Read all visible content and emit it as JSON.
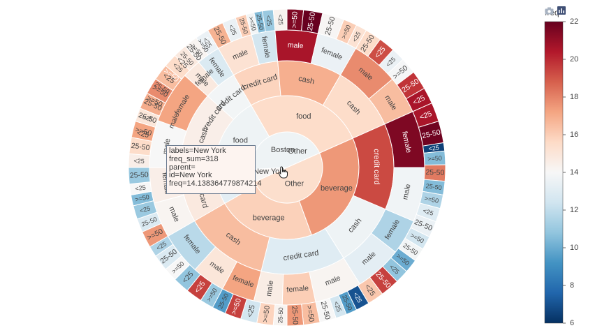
{
  "chart_data": {
    "type": "sunburst",
    "root": {
      "label": "Other"
    },
    "colorbar": {
      "title": "freq",
      "ticks": [
        "22",
        "20",
        "18",
        "16",
        "14",
        "12",
        "10",
        "8",
        "6"
      ],
      "range": [
        6,
        22
      ],
      "colorscale": [
        "#053061",
        "#2166ac",
        "#4393c3",
        "#92c5de",
        "#d1e5f0",
        "#f7f7f7",
        "#fddbc7",
        "#f4a582",
        "#d6604d",
        "#b2182b",
        "#67001f"
      ]
    },
    "hover": {
      "lines": [
        "labels=New York",
        "freq_sum=318",
        "parent=",
        "id=New York",
        "freq=14.138364779874214"
      ]
    },
    "nodes": [
      {
        "id": "c_ny",
        "depth": 0,
        "label": "New York",
        "start": 246,
        "end": 267,
        "freq": 14.1
      },
      {
        "id": "c_bos",
        "depth": 0,
        "label": "Boston",
        "start": 267,
        "end": 426,
        "freq": 13.6
      },
      {
        "id": "c_oth",
        "depth": 0,
        "label": "Other",
        "start": 66,
        "end": 246,
        "freq": 15.4
      },
      {
        "id": "t_food1",
        "depth": 1,
        "label": "food",
        "start": -30,
        "end": 66,
        "freq": 15.5
      },
      {
        "id": "t_bev1",
        "depth": 1,
        "label": "beverage",
        "start": 66,
        "end": 160,
        "freq": 17.5
      },
      {
        "id": "t_bev2",
        "depth": 1,
        "label": "beverage",
        "start": 160,
        "end": 240,
        "freq": 15.9
      },
      {
        "id": "t_beverage_left",
        "depth": 1,
        "label": "beverage",
        "start": 240,
        "end": 270,
        "freq": 13.2
      },
      {
        "id": "t_food2",
        "depth": 1,
        "label": "food",
        "start": 270,
        "end": 330,
        "freq": 13.6
      },
      {
        "id": "p1",
        "depth": 2,
        "label": "credit card",
        "start": -80,
        "end": -30,
        "freq": 17.0
      },
      {
        "id": "p2",
        "depth": 2,
        "label": "credit card",
        "start": -30,
        "end": -5,
        "freq": 15.8
      },
      {
        "id": "p3",
        "depth": 2,
        "label": "cash",
        "start": -5,
        "end": 30,
        "freq": 16.9
      },
      {
        "id": "p4",
        "depth": 2,
        "label": "cash",
        "start": 30,
        "end": 66,
        "freq": 15.5
      },
      {
        "id": "p5",
        "depth": 2,
        "label": "credit card",
        "start": 66,
        "end": 113,
        "freq": 19.3
      },
      {
        "id": "p6",
        "depth": 2,
        "label": "cash",
        "start": 113,
        "end": 148,
        "freq": 13.6
      },
      {
        "id": "p7",
        "depth": 2,
        "label": "credit card",
        "start": 148,
        "end": 194,
        "freq": 13.0
      },
      {
        "id": "p8",
        "depth": 2,
        "label": "cash",
        "start": 194,
        "end": 240,
        "freq": 16.5
      },
      {
        "id": "p9",
        "depth": 2,
        "label": "credit card",
        "start": 240,
        "end": 270,
        "freq": 14.8
      },
      {
        "id": "p10",
        "depth": 2,
        "label": "cash",
        "start": 270,
        "end": 312,
        "freq": 14.5
      },
      {
        "id": "p11",
        "depth": 2,
        "label": "credit card",
        "start": 312,
        "end": 330,
        "freq": 13.8
      },
      {
        "id": "g1",
        "depth": 3,
        "label": "male",
        "start": -80,
        "end": -55,
        "freq": 17.5
      },
      {
        "id": "g2",
        "depth": 3,
        "label": "female",
        "start": -55,
        "end": -30,
        "freq": 17.0
      },
      {
        "id": "g3",
        "depth": 3,
        "label": "male",
        "start": -30,
        "end": -15,
        "freq": 15.2
      },
      {
        "id": "g4",
        "depth": 3,
        "label": "female",
        "start": -15,
        "end": -5,
        "freq": 12.5
      },
      {
        "id": "g5",
        "depth": 3,
        "label": "male",
        "start": -5,
        "end": 13,
        "freq": 20.6
      },
      {
        "id": "g6",
        "depth": 3,
        "label": "female",
        "start": 13,
        "end": 30,
        "freq": 13.5
      },
      {
        "id": "g7",
        "depth": 3,
        "label": "male",
        "start": 30,
        "end": 50,
        "freq": 17.8
      },
      {
        "id": "g8",
        "depth": 3,
        "label": "male",
        "start": 50,
        "end": 66,
        "freq": 16.5
      },
      {
        "id": "g9",
        "depth": 3,
        "label": "female",
        "start": 66,
        "end": 90,
        "freq": 21.5
      },
      {
        "id": "g10",
        "depth": 3,
        "label": "male",
        "start": 90,
        "end": 113,
        "freq": 13.7
      },
      {
        "id": "g11",
        "depth": 3,
        "label": "female",
        "start": 113,
        "end": 128,
        "freq": 11.5
      },
      {
        "id": "g12",
        "depth": 3,
        "label": "male",
        "start": 128,
        "end": 148,
        "freq": 13.2
      },
      {
        "id": "g13",
        "depth": 3,
        "label": "male",
        "start": 148,
        "end": 168,
        "freq": 14.2
      },
      {
        "id": "g14",
        "depth": 3,
        "label": "female",
        "start": 168,
        "end": 182,
        "freq": 16.0
      },
      {
        "id": "g15",
        "depth": 3,
        "label": "male",
        "start": 182,
        "end": 194,
        "freq": 14.6
      },
      {
        "id": "g16",
        "depth": 3,
        "label": "female",
        "start": 194,
        "end": 208,
        "freq": 17.2
      },
      {
        "id": "g17",
        "depth": 3,
        "label": "male",
        "start": 208,
        "end": 222,
        "freq": 15.0
      },
      {
        "id": "g18",
        "depth": 3,
        "label": "female",
        "start": 222,
        "end": 240,
        "freq": 11.8
      },
      {
        "id": "g19",
        "depth": 3,
        "label": "male",
        "start": 240,
        "end": 255,
        "freq": 14.2
      },
      {
        "id": "g20",
        "depth": 3,
        "label": "female",
        "start": 255,
        "end": 270,
        "freq": 14.5
      },
      {
        "id": "g21",
        "depth": 3,
        "label": "male",
        "start": 270,
        "end": 290,
        "freq": 14.0
      },
      {
        "id": "g22",
        "depth": 3,
        "label": "female",
        "start": 290,
        "end": 312,
        "freq": 17.2
      },
      {
        "id": "g23",
        "depth": 3,
        "label": "male",
        "start": 312,
        "end": 320,
        "freq": 14.8
      },
      {
        "id": "g24",
        "depth": 3,
        "label": "female",
        "start": 320,
        "end": 330,
        "freq": 12.8
      },
      {
        "id": "a1",
        "depth": 4,
        "label": "<25",
        "start": -80,
        "end": -74,
        "freq": 15.0
      },
      {
        "id": "a2",
        "depth": 4,
        "label": "25-50",
        "start": -74,
        "end": -67,
        "freq": 16.2
      },
      {
        "id": "a3",
        "depth": 4,
        "label": ">=50",
        "start": -67,
        "end": -60,
        "freq": 18.0
      },
      {
        "id": "a4",
        "depth": 4,
        "label": "25-50",
        "start": -60,
        "end": -55,
        "freq": 15.8
      },
      {
        "id": "a5",
        "depth": 4,
        "label": ">=50",
        "start": -55,
        "end": -48,
        "freq": 19.5
      },
      {
        "id": "a6",
        "depth": 4,
        "label": "<25",
        "start": -48,
        "end": -42,
        "freq": 18.6
      },
      {
        "id": "a7",
        "depth": 4,
        "label": "25-50",
        "start": -42,
        "end": -36,
        "freq": 16.3
      },
      {
        "id": "a8",
        "depth": 4,
        "label": ">=50",
        "start": -36,
        "end": -33,
        "freq": 14.0
      },
      {
        "id": "a9",
        "depth": 4,
        "label": "<25",
        "start": -33,
        "end": -30,
        "freq": 7.0
      },
      {
        "id": "a10",
        "depth": 4,
        "label": "25-50",
        "start": -30,
        "end": -24,
        "freq": 16.8
      },
      {
        "id": "a11",
        "depth": 4,
        "label": "<25",
        "start": -24,
        "end": -19,
        "freq": 13.5
      },
      {
        "id": "a12",
        "depth": 4,
        "label": "25-50",
        "start": -19,
        "end": -15,
        "freq": 16.0
      },
      {
        "id": "a13",
        "depth": 4,
        "label": ">=50",
        "start": -15,
        "end": -12,
        "freq": 13.8
      },
      {
        "id": "a14",
        "depth": 4,
        "label": "25-50",
        "start": -12,
        "end": -9,
        "freq": 10.5
      },
      {
        "id": "a15",
        "depth": 4,
        "label": "<25",
        "start": -9,
        "end": -5,
        "freq": 11.0
      },
      {
        "id": "a16",
        "depth": 4,
        "label": "<25",
        "start": -5,
        "end": 0,
        "freq": 14.3
      },
      {
        "id": "a17",
        "depth": 4,
        "label": ">=50",
        "start": 0,
        "end": 6,
        "freq": 21.5
      },
      {
        "id": "a18",
        "depth": 4,
        "label": "25-50",
        "start": 6,
        "end": 13,
        "freq": 22.0
      },
      {
        "id": "a19",
        "depth": 4,
        "label": "25-50",
        "start": 13,
        "end": 21,
        "freq": 14.1
      },
      {
        "id": "a20",
        "depth": 4,
        "label": ">=50",
        "start": 21,
        "end": 26,
        "freq": 16.0
      },
      {
        "id": "a21",
        "depth": 4,
        "label": "<25",
        "start": 26,
        "end": 30,
        "freq": 15.2
      },
      {
        "id": "a22",
        "depth": 4,
        "label": "25-50",
        "start": 30,
        "end": 36,
        "freq": 15.5
      },
      {
        "id": "a23",
        "depth": 4,
        "label": "<25",
        "start": 36,
        "end": 42,
        "freq": 19.2
      },
      {
        "id": "a24",
        "depth": 4,
        "label": "<25",
        "start": 42,
        "end": 47,
        "freq": 13.5
      },
      {
        "id": "a25",
        "depth": 4,
        "label": ">=50",
        "start": 47,
        "end": 53,
        "freq": 13.9
      },
      {
        "id": "a26",
        "depth": 4,
        "label": "25-50",
        "start": 53,
        "end": 60,
        "freq": 19.8
      },
      {
        "id": "a27",
        "depth": 4,
        "label": "<25",
        "start": 60,
        "end": 66,
        "freq": 20.6
      },
      {
        "id": "a28",
        "depth": 4,
        "label": "<25",
        "start": 66,
        "end": 73,
        "freq": 20.6
      },
      {
        "id": "a29",
        "depth": 4,
        "label": "25-50",
        "start": 73,
        "end": 81,
        "freq": 21.8
      },
      {
        "id": "a30",
        "depth": 4,
        "label": "<25",
        "start": 81,
        "end": 84,
        "freq": 6.5
      },
      {
        "id": "a31",
        "depth": 4,
        "label": ">=50",
        "start": 84,
        "end": 89,
        "freq": 10.5
      },
      {
        "id": "a32",
        "depth": 4,
        "label": "25-50",
        "start": 89,
        "end": 95,
        "freq": 18.2
      },
      {
        "id": "a33",
        "depth": 4,
        "label": "25-50",
        "start": 95,
        "end": 100,
        "freq": 10.5
      },
      {
        "id": "a34",
        "depth": 4,
        "label": ">=50",
        "start": 100,
        "end": 105,
        "freq": 11.5
      },
      {
        "id": "a35",
        "depth": 4,
        "label": "<25",
        "start": 105,
        "end": 110,
        "freq": 13.0
      },
      {
        "id": "a36",
        "depth": 4,
        "label": "25-50",
        "start": 110,
        "end": 116,
        "freq": 13.5
      },
      {
        "id": "a37",
        "depth": 4,
        "label": ">=50",
        "start": 116,
        "end": 121,
        "freq": 12.5
      },
      {
        "id": "a38",
        "depth": 4,
        "label": "25-50",
        "start": 121,
        "end": 126,
        "freq": 13.8
      },
      {
        "id": "a39",
        "depth": 4,
        "label": ">=50",
        "start": 126,
        "end": 131,
        "freq": 10.0
      },
      {
        "id": "a40",
        "depth": 4,
        "label": "<25",
        "start": 131,
        "end": 136,
        "freq": 10.8
      },
      {
        "id": "a41",
        "depth": 4,
        "label": "25-50",
        "start": 136,
        "end": 143,
        "freq": 19.5
      },
      {
        "id": "a42",
        "depth": 4,
        "label": "<25",
        "start": 143,
        "end": 149,
        "freq": 16.2
      },
      {
        "id": "a43",
        "depth": 4,
        "label": "<25",
        "start": 149,
        "end": 154,
        "freq": 7.0
      },
      {
        "id": "a44",
        "depth": 4,
        "label": "25-50",
        "start": 154,
        "end": 158,
        "freq": 9.5
      },
      {
        "id": "a45",
        "depth": 4,
        "label": "<25",
        "start": 158,
        "end": 162,
        "freq": 12.5
      },
      {
        "id": "a46",
        "depth": 4,
        "label": "25-50",
        "start": 162,
        "end": 168,
        "freq": 14.0
      },
      {
        "id": "a47",
        "depth": 4,
        "label": ">=50",
        "start": 168,
        "end": 174,
        "freq": 16.5
      },
      {
        "id": "a48",
        "depth": 4,
        "label": "25-50",
        "start": 174,
        "end": 180,
        "freq": 17.5
      },
      {
        "id": "a49",
        "depth": 4,
        "label": "25-50",
        "start": 180,
        "end": 185,
        "freq": 14.2
      },
      {
        "id": "a50",
        "depth": 4,
        "label": ">=50",
        "start": 185,
        "end": 191,
        "freq": 15.8
      },
      {
        "id": "a51",
        "depth": 4,
        "label": "<25",
        "start": 191,
        "end": 197,
        "freq": 12.5
      },
      {
        "id": "a52",
        "depth": 4,
        "label": ">=50",
        "start": 197,
        "end": 203,
        "freq": 19.5
      },
      {
        "id": "a53",
        "depth": 4,
        "label": "25-50",
        "start": 203,
        "end": 208,
        "freq": 9.5
      },
      {
        "id": "a54",
        "depth": 4,
        "label": ">=50",
        "start": 208,
        "end": 213,
        "freq": 11.0
      },
      {
        "id": "a55",
        "depth": 4,
        "label": "<25",
        "start": 213,
        "end": 219,
        "freq": 19.5
      },
      {
        "id": "a56",
        "depth": 4,
        "label": "<25",
        "start": 219,
        "end": 225,
        "freq": 10.8
      },
      {
        "id": "a57",
        "depth": 4,
        "label": ">=50",
        "start": 225,
        "end": 230,
        "freq": 14.0
      },
      {
        "id": "a58",
        "depth": 4,
        "label": "25-50",
        "start": 230,
        "end": 236,
        "freq": 12.8
      },
      {
        "id": "a59",
        "depth": 4,
        "label": "<25",
        "start": 236,
        "end": 240,
        "freq": 11.5
      },
      {
        "id": "a60",
        "depth": 4,
        "label": ">=50",
        "start": 240,
        "end": 246,
        "freq": 17.5
      },
      {
        "id": "a61",
        "depth": 4,
        "label": "25-50",
        "start": 246,
        "end": 251,
        "freq": 12.8
      },
      {
        "id": "a62",
        "depth": 4,
        "label": "<25",
        "start": 251,
        "end": 256,
        "freq": 11.0
      },
      {
        "id": "a63",
        "depth": 4,
        "label": ">=50",
        "start": 256,
        "end": 260,
        "freq": 10.5
      },
      {
        "id": "a64",
        "depth": 4,
        "label": "<25",
        "start": 260,
        "end": 264,
        "freq": 14.0
      },
      {
        "id": "a65",
        "depth": 4,
        "label": "25-50",
        "start": 264,
        "end": 270,
        "freq": 11.0
      },
      {
        "id": "a66",
        "depth": 4,
        "label": "<25",
        "start": 270,
        "end": 275,
        "freq": 14.5
      },
      {
        "id": "a67",
        "depth": 4,
        "label": "25-50",
        "start": 275,
        "end": 281,
        "freq": 15.5
      },
      {
        "id": "a68",
        "depth": 4,
        "label": ">=50",
        "start": 281,
        "end": 287,
        "freq": 17.2
      },
      {
        "id": "a69",
        "depth": 4,
        "label": "<25",
        "start": 287,
        "end": 292,
        "freq": 15.0
      },
      {
        "id": "a70",
        "depth": 4,
        "label": "25-50",
        "start": 292,
        "end": 298,
        "freq": 17.0
      },
      {
        "id": "a71",
        "depth": 4,
        "label": ">=50",
        "start": 298,
        "end": 304,
        "freq": 17.8
      },
      {
        "id": "a72",
        "depth": 4,
        "label": "<25",
        "start": 304,
        "end": 310,
        "freq": 16.5
      },
      {
        "id": "a73",
        "depth": 4,
        "label": "<25",
        "start": 310,
        "end": 315,
        "freq": 15.5
      },
      {
        "id": "a74",
        "depth": 4,
        "label": "25-50",
        "start": 315,
        "end": 320,
        "freq": 14.8
      },
      {
        "id": "a75",
        "depth": 4,
        "label": ">=50",
        "start": 320,
        "end": 325,
        "freq": 14.2
      },
      {
        "id": "a76",
        "depth": 4,
        "label": "<25",
        "start": 325,
        "end": 330,
        "freq": 13.5
      }
    ]
  }
}
